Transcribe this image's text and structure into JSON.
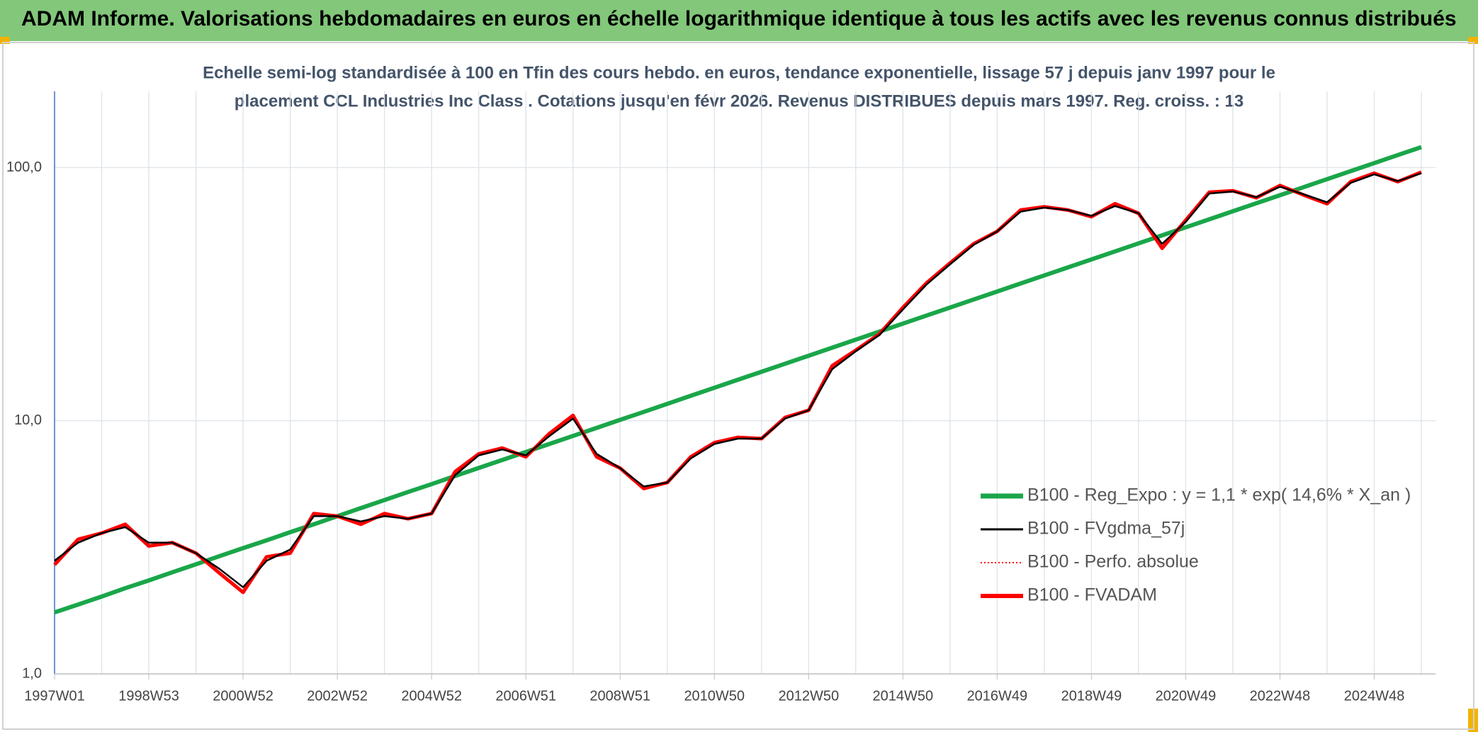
{
  "chart_data": {
    "type": "line",
    "title": "ADAM Informe. Valorisations hebdomadaires en euros en échelle logarithmique identique à tous les actifs avec les revenus connus distribués",
    "subtitle": [
      "Echelle semi-log standardisée à 100 en Tfin des cours hebdo. en euros, tendance exponentielle, lissage 57 j depuis janv 1997 pour le",
      "placement CCL Industries Inc Class . Cotations jusqu'en févr 2026. Revenus DISTRIBUES depuis mars 1997. Reg. croiss. : 13"
    ],
    "log_scale": true,
    "grid": true,
    "legend_position": "right",
    "ylim": [
      1,
      200
    ],
    "yticks": [
      {
        "value": 1,
        "label": "1,0"
      },
      {
        "value": 10,
        "label": "10,0"
      },
      {
        "value": 100,
        "label": "100,0"
      }
    ],
    "categories": [
      "1997W01",
      null,
      null,
      null,
      "1998W53",
      null,
      null,
      null,
      "2000W52",
      null,
      null,
      null,
      "2002W52",
      null,
      null,
      null,
      "2004W52",
      null,
      null,
      null,
      "2006W51",
      null,
      null,
      null,
      "2008W51",
      null,
      null,
      null,
      "2010W50",
      null,
      null,
      null,
      "2012W50",
      null,
      null,
      null,
      "2014W50",
      null,
      null,
      null,
      "2016W49",
      null,
      null,
      null,
      "2018W49",
      null,
      null,
      null,
      "2020W49",
      null,
      null,
      null,
      "2022W48",
      null,
      null,
      null,
      "2024W48",
      null,
      null
    ],
    "series": [
      {
        "name": "B100 - Reg_Expo : y = 1,1 * exp( 14,6% *  X_an )",
        "color": "#1aa64a",
        "style": "solid",
        "values": [
          1.75,
          1.88,
          2.02,
          2.18,
          2.34,
          2.52,
          2.71,
          2.92,
          3.14,
          3.37,
          3.63,
          3.9,
          4.2,
          4.52,
          4.86,
          5.23,
          5.62,
          6.05,
          6.51,
          7.0,
          7.53,
          8.1,
          8.71,
          9.37,
          10.08,
          10.84,
          11.66,
          12.55,
          13.5,
          14.52,
          15.62,
          16.8,
          18.07,
          19.44,
          20.91,
          22.5,
          24.2,
          26.03,
          28.0,
          30.12,
          32.4,
          34.86,
          37.5,
          40.33,
          43.39,
          46.67,
          50.21,
          54.01,
          58.1,
          62.5,
          67.23,
          72.32,
          77.8,
          83.69,
          90.03,
          96.84,
          104.2,
          112.1,
          120.5
        ]
      },
      {
        "name": "B100 - FVgdma_57j",
        "color": "#000000",
        "style": "solid",
        "values": [
          2.8,
          3.3,
          3.6,
          3.8,
          3.3,
          3.3,
          3.0,
          2.6,
          2.2,
          2.8,
          3.1,
          4.2,
          4.2,
          4.0,
          4.2,
          4.1,
          4.3,
          6.1,
          7.3,
          7.7,
          7.3,
          8.7,
          10.2,
          7.4,
          6.5,
          5.5,
          5.7,
          7.1,
          8.1,
          8.5,
          8.5,
          10.2,
          11.0,
          16.0,
          18.8,
          21.8,
          27.5,
          34.5,
          41.5,
          49.5,
          56.0,
          67.0,
          69.5,
          68.0,
          64.5,
          70.5,
          66.0,
          50.0,
          61.0,
          79.0,
          80.5,
          76.5,
          84.0,
          78.5,
          73.0,
          87.0,
          94.0,
          88.5,
          95.0
        ]
      },
      {
        "name": "B100 - Perfo. absolue",
        "color": "#ff0000",
        "style": "dotted",
        "values": [
          2.7,
          3.4,
          3.6,
          3.9,
          3.2,
          3.3,
          3.0,
          2.5,
          2.1,
          2.9,
          3.0,
          4.3,
          4.2,
          3.9,
          4.3,
          4.1,
          4.3,
          6.3,
          7.4,
          7.8,
          7.2,
          8.9,
          10.5,
          7.2,
          6.5,
          5.4,
          5.7,
          7.2,
          8.2,
          8.6,
          8.5,
          10.3,
          11.0,
          16.5,
          19.0,
          22.0,
          28.0,
          35.0,
          42.0,
          50.0,
          56.0,
          68.0,
          70.0,
          68.0,
          64.0,
          72.0,
          66.0,
          48.0,
          62.0,
          80.0,
          81.0,
          76.0,
          85.0,
          78.0,
          72.0,
          88.0,
          95.0,
          88.0,
          96.0
        ]
      },
      {
        "name": "B100 - FVADAM",
        "color": "#ff0000",
        "style": "solid",
        "values": [
          2.7,
          3.4,
          3.6,
          3.9,
          3.2,
          3.3,
          3.0,
          2.5,
          2.1,
          2.9,
          3.0,
          4.3,
          4.2,
          3.9,
          4.3,
          4.1,
          4.3,
          6.3,
          7.4,
          7.8,
          7.2,
          8.9,
          10.5,
          7.2,
          6.5,
          5.4,
          5.7,
          7.2,
          8.2,
          8.6,
          8.5,
          10.3,
          11.0,
          16.5,
          19.0,
          22.0,
          28.0,
          35.0,
          42.0,
          50.0,
          56.0,
          68.0,
          70.0,
          68.0,
          64.0,
          72.0,
          66.0,
          48.0,
          62.0,
          80.0,
          81.0,
          76.0,
          85.0,
          78.0,
          72.0,
          88.0,
          95.0,
          88.0,
          96.0
        ]
      }
    ]
  }
}
